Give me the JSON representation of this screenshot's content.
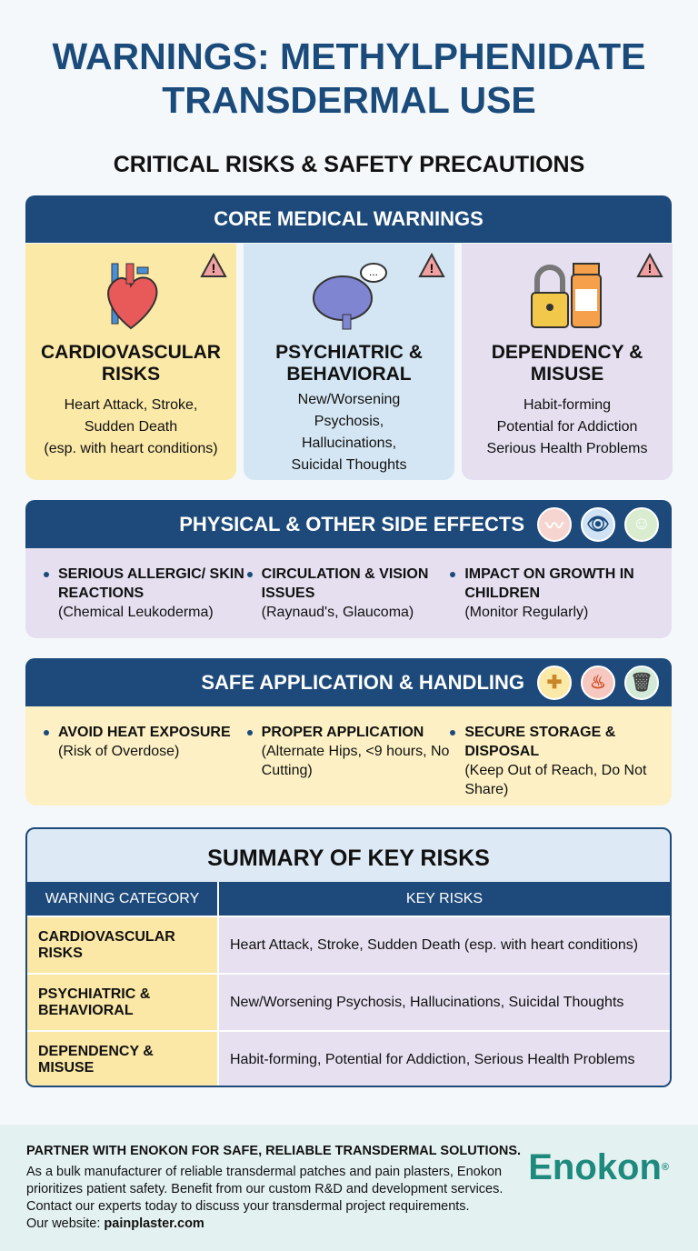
{
  "title_lines": [
    "WARNINGS: METHYLPHENIDATE",
    "TRANSDERMAL USE"
  ],
  "subtitle": "CRITICAL RISKS & SAFETY PRECAUTIONS",
  "core": {
    "header": "CORE MEDICAL WARNINGS",
    "cards": [
      {
        "title": "CARDIOVASCULAR RISKS",
        "lines": [
          "Heart Attack, Stroke,",
          "Sudden Death",
          "(esp. with heart conditions)"
        ],
        "icon": "heart-icon",
        "color": "#fbe9a8"
      },
      {
        "title": "PSYCHIATRIC & BEHAVIORAL",
        "lines": [
          "New/Worsening",
          "Psychosis,",
          "Hallucinations,",
          "Suicidal Thoughts"
        ],
        "icon": "brain-icon",
        "color": "#d4e6f3"
      },
      {
        "title": "DEPENDENCY & MISUSE",
        "lines": [
          "Habit-forming",
          "Potential for Addiction",
          "Serious Health Problems"
        ],
        "icon": "lock-pill-bottle-icon",
        "color": "#e5dff0"
      }
    ]
  },
  "physical": {
    "header": "PHYSICAL & OTHER SIDE EFFECTS",
    "icons": [
      "skin-icon",
      "eye-icon",
      "child-face-icon"
    ],
    "items": [
      {
        "title": "SERIOUS ALLERGIC/ SKIN REACTIONS",
        "detail": "(Chemical Leukoderma)"
      },
      {
        "title": "CIRCULATION & VISION ISSUES",
        "detail": "(Raynaud's, Glaucoma)"
      },
      {
        "title": "IMPACT ON GROWTH IN CHILDREN",
        "detail": "(Monitor Regularly)"
      }
    ]
  },
  "safe": {
    "header": "SAFE APPLICATION & HANDLING",
    "icons": [
      "patch-icon",
      "heat-icon",
      "trash-icon"
    ],
    "items": [
      {
        "title": "AVOID HEAT EXPOSURE",
        "detail": "(Risk of Overdose)"
      },
      {
        "title": "PROPER APPLICATION",
        "detail": "(Alternate Hips, <9 hours, No Cutting)"
      },
      {
        "title": "SECURE STORAGE & DISPOSAL",
        "detail": "(Keep Out of Reach, Do Not Share)"
      }
    ]
  },
  "summary": {
    "title": "SUMMARY OF KEY RISKS",
    "headers": [
      "WARNING CATEGORY",
      "KEY RISKS"
    ],
    "rows": [
      [
        "CARDIOVASCULAR RISKS",
        "Heart Attack, Stroke, Sudden Death (esp. with heart conditions)"
      ],
      [
        "PSYCHIATRIC & BEHAVIORAL",
        "New/Worsening Psychosis, Hallucinations, Suicidal Thoughts"
      ],
      [
        "DEPENDENCY & MISUSE",
        "Habit-forming, Potential for Addiction, Serious Health Problems"
      ]
    ]
  },
  "footer": {
    "heading": "PARTNER WITH ENOKON FOR SAFE, RELIABLE TRANSDERMAL SOLUTIONS.",
    "lines": [
      "As a bulk manufacturer of reliable transdermal patches and pain plasters, Enokon",
      "prioritizes patient safety. Benefit from our custom R&D and development services.",
      "Contact our experts today to discuss your transdermal project requirements."
    ],
    "website_label": "Our website: ",
    "website": "painplaster.com",
    "logo": "Enokon",
    "logo_mark": "®"
  }
}
